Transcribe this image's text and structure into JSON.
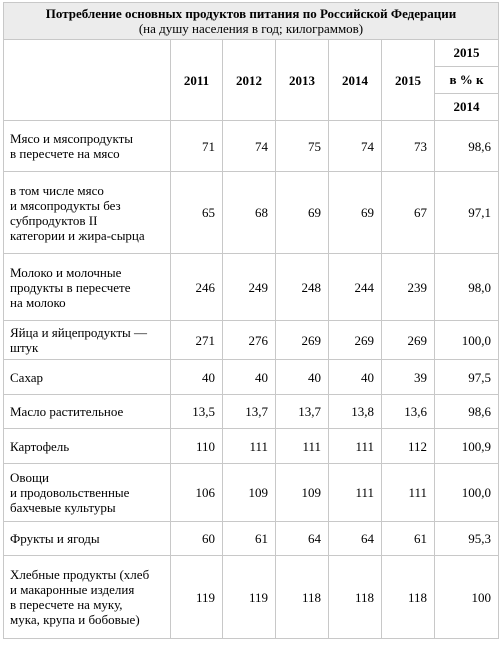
{
  "title": "Потребление основных продуктов питания по Российской Федерации",
  "subtitle": "(на душу населения в год; килограммов)",
  "columns": {
    "years": [
      "2011",
      "2012",
      "2013",
      "2014",
      "2015"
    ],
    "last": [
      "2015",
      "в % к",
      "2014"
    ]
  },
  "rows": [
    {
      "label": [
        "Мясо и мясопродукты",
        "в пересчете на мясо"
      ],
      "values": [
        "71",
        "74",
        "75",
        "74",
        "73",
        "98,6"
      ]
    },
    {
      "label": [
        "в том числе мясо",
        "и мясопродукты без",
        "субпродуктов II",
        "категории и жира-сырца"
      ],
      "values": [
        "65",
        "68",
        "69",
        "69",
        "67",
        "97,1"
      ]
    },
    {
      "label": [
        "Молоко и молочные",
        "продукты в пересчете",
        "на молоко"
      ],
      "values": [
        "246",
        "249",
        "248",
        "244",
        "239",
        "98,0"
      ]
    },
    {
      "label": [
        "Яйца и яйцепродукты —",
        "штук"
      ],
      "values": [
        "271",
        "276",
        "269",
        "269",
        "269",
        "100,0"
      ]
    },
    {
      "label": [
        "Сахар"
      ],
      "values": [
        "40",
        "40",
        "40",
        "40",
        "39",
        "97,5"
      ]
    },
    {
      "label": [
        "Масло растительное"
      ],
      "values": [
        "13,5",
        "13,7",
        "13,7",
        "13,8",
        "13,6",
        "98,6"
      ]
    },
    {
      "label": [
        "Картофель"
      ],
      "values": [
        "110",
        "111",
        "111",
        "111",
        "112",
        "100,9"
      ]
    },
    {
      "label": [
        "Овощи",
        "и продовольственные",
        "бахчевые культуры"
      ],
      "values": [
        "106",
        "109",
        "109",
        "111",
        "111",
        "100,0"
      ]
    },
    {
      "label": [
        "Фрукты и ягоды"
      ],
      "values": [
        "60",
        "61",
        "64",
        "64",
        "61",
        "95,3"
      ]
    },
    {
      "label": [
        "Хлебные продукты (хлеб",
        "и макаронные изделия",
        "в пересчете на муку,",
        "мука, крупа и бобовые)"
      ],
      "values": [
        "119",
        "119",
        "118",
        "118",
        "118",
        "100"
      ]
    }
  ]
}
